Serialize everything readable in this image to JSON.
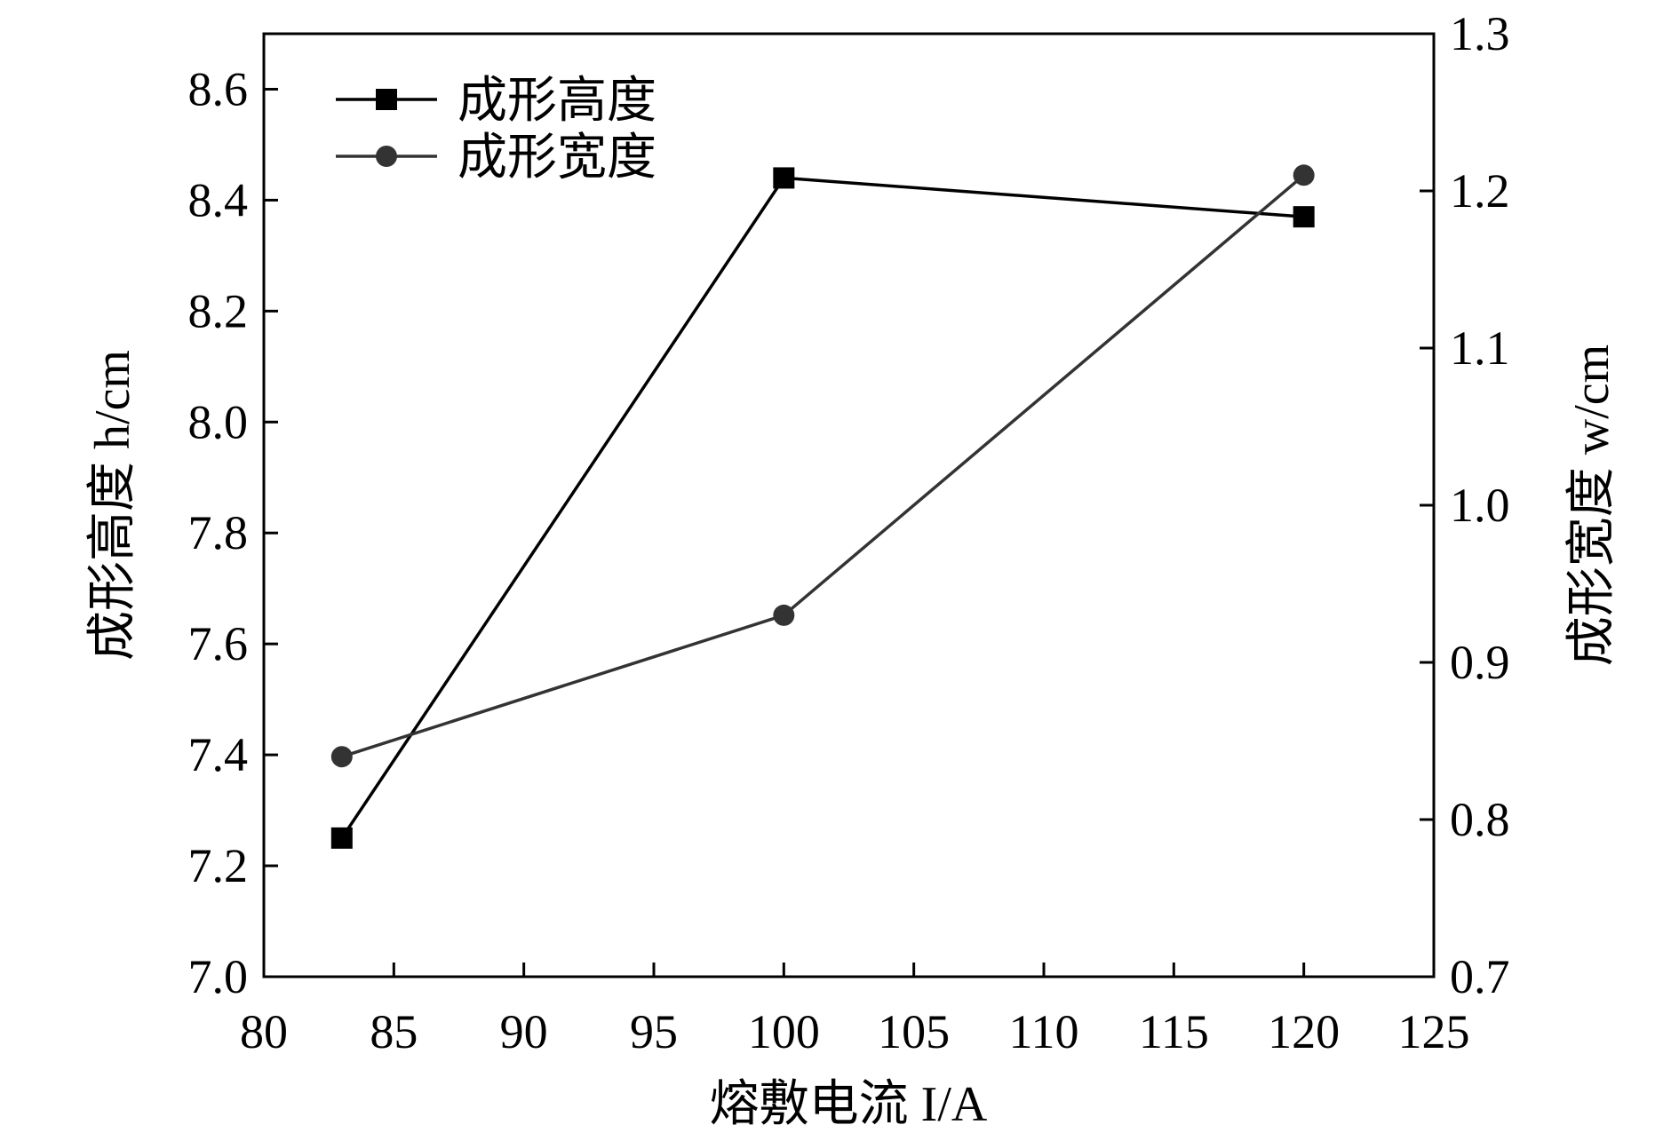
{
  "chart_data": {
    "type": "line",
    "title": "",
    "x": [
      83,
      100,
      120
    ],
    "xlim": [
      80,
      125
    ],
    "xticks": [
      80,
      85,
      90,
      95,
      100,
      105,
      110,
      115,
      120,
      125
    ],
    "xlabel": "熔敷电流 I/A",
    "y_left": {
      "label": "成形高度 h/cm",
      "lim": [
        7.0,
        8.7
      ],
      "ticks": [
        7.0,
        7.2,
        7.4,
        7.6,
        7.8,
        8.0,
        8.2,
        8.4,
        8.6
      ],
      "tick_labels": [
        "7.0",
        "7.2",
        "7.4",
        "7.6",
        "7.8",
        "8.0",
        "8.2",
        "8.4",
        "8.6"
      ]
    },
    "y_right": {
      "label": "成形宽度 w/cm",
      "lim": [
        0.7,
        1.3
      ],
      "ticks": [
        0.7,
        0.8,
        0.9,
        1.0,
        1.1,
        1.2,
        1.3
      ],
      "tick_labels": [
        "0.7",
        "0.8",
        "0.9",
        "1.0",
        "1.1",
        "1.2",
        "1.3"
      ]
    },
    "series": [
      {
        "name": "成形高度",
        "axis": "left",
        "marker": "square",
        "color": "#000000",
        "values": [
          7.25,
          8.44,
          8.37
        ]
      },
      {
        "name": "成形宽度",
        "axis": "right",
        "marker": "circle",
        "color": "#333333",
        "values": [
          0.84,
          0.93,
          1.21
        ]
      }
    ],
    "legend": {
      "position": "top-left"
    },
    "grid": false
  }
}
